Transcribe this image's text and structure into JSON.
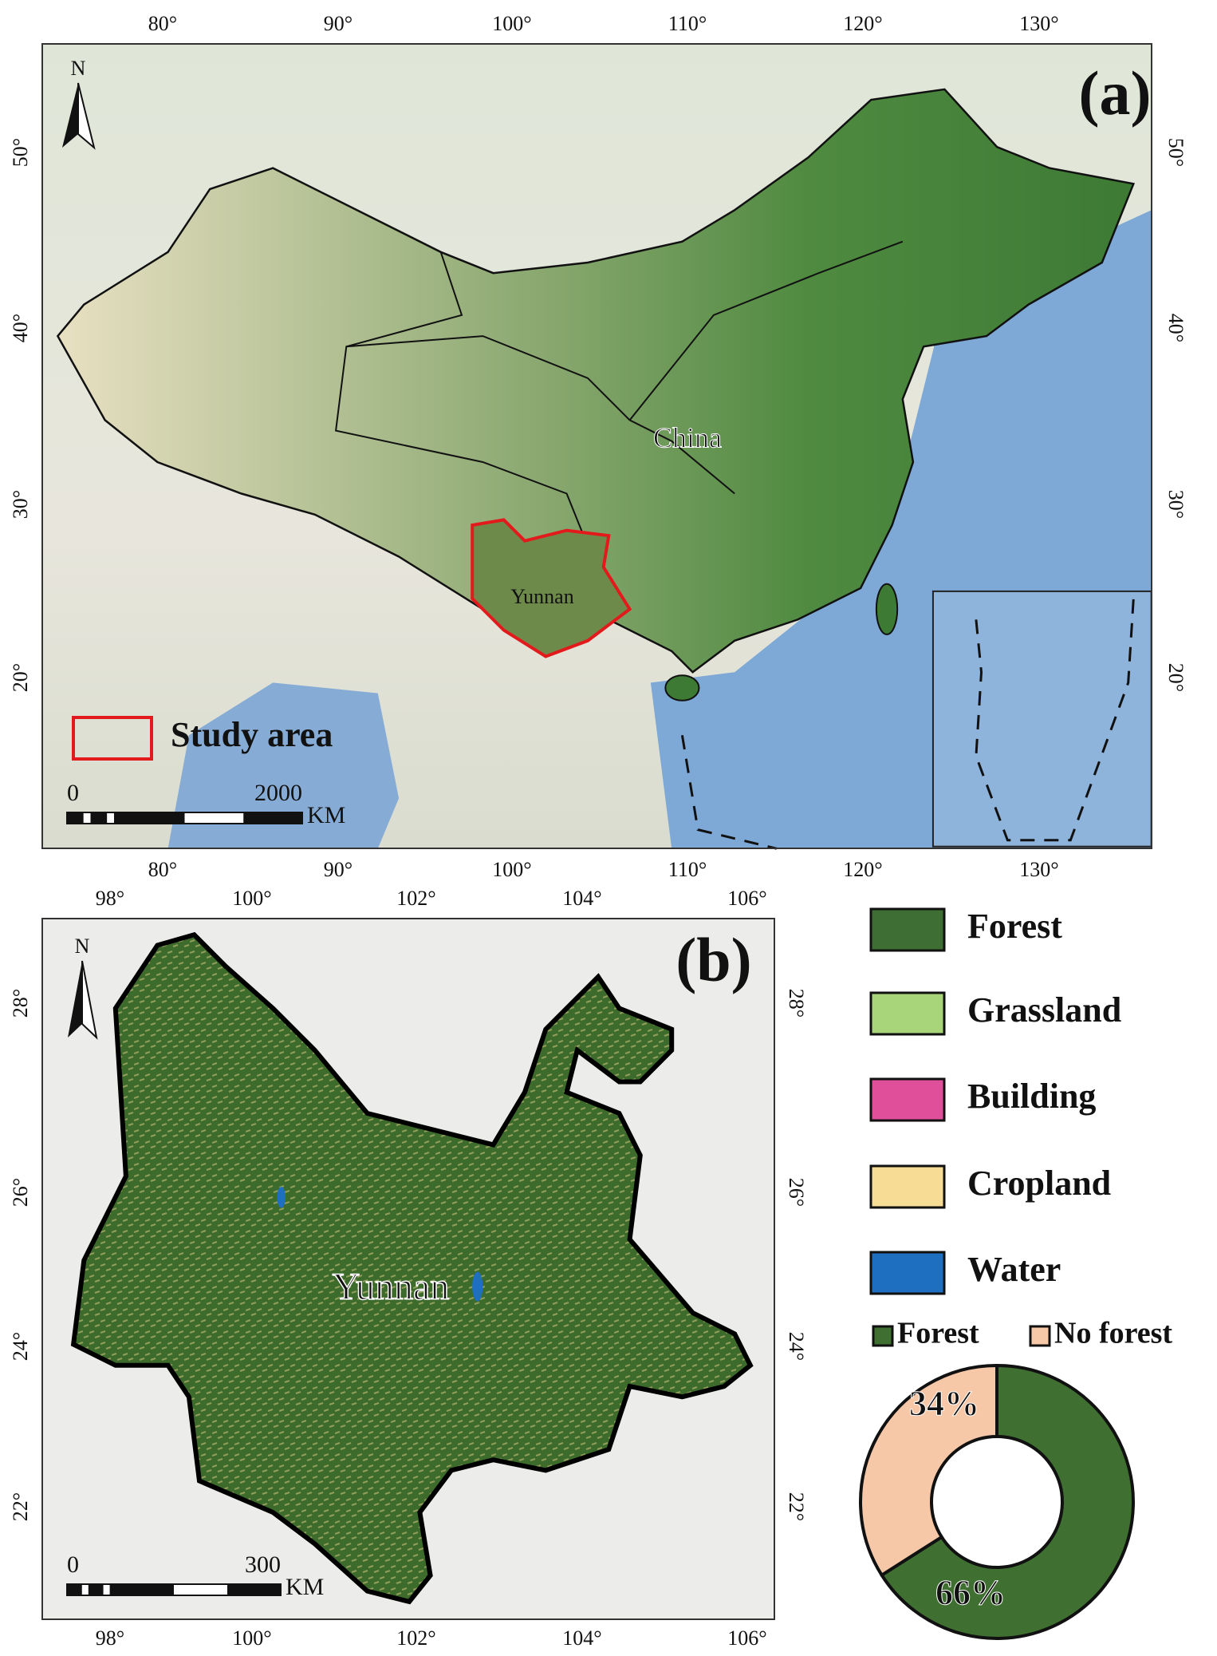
{
  "panel_a": {
    "label": "(a)",
    "north": "N",
    "lon_ticks": [
      "80°",
      "90°",
      "100°",
      "110°",
      "120°",
      "130°"
    ],
    "lat_ticks": [
      "50°",
      "40°",
      "30°",
      "20°"
    ],
    "country": "China",
    "province": "Yunnan",
    "study_area": "Study area",
    "scale": {
      "start": "0",
      "end": "2000",
      "unit": "KM"
    }
  },
  "panel_b": {
    "label": "(b)",
    "north": "N",
    "lon_ticks": [
      "98°",
      "100°",
      "102°",
      "104°",
      "106°"
    ],
    "lat_ticks": [
      "28°",
      "26°",
      "24°",
      "22°"
    ],
    "province": "Yunnan",
    "scale": {
      "start": "0",
      "end": "300",
      "unit": "KM"
    }
  },
  "legend": {
    "items": [
      {
        "label": "Forest",
        "color": "#3e6e34"
      },
      {
        "label": "Grassland",
        "color": "#a9d57a"
      },
      {
        "label": "Building",
        "color": "#e0509a"
      },
      {
        "label": "Cropland",
        "color": "#f6dc94"
      },
      {
        "label": "Water",
        "color": "#1f6fc0"
      }
    ]
  },
  "chart_data": {
    "type": "pie",
    "donut": true,
    "categories": [
      "Forest",
      "No forest"
    ],
    "values": [
      66,
      34
    ],
    "value_labels": [
      "66%",
      "34%"
    ],
    "colors": [
      "#3f7032",
      "#f6c8a8"
    ]
  }
}
